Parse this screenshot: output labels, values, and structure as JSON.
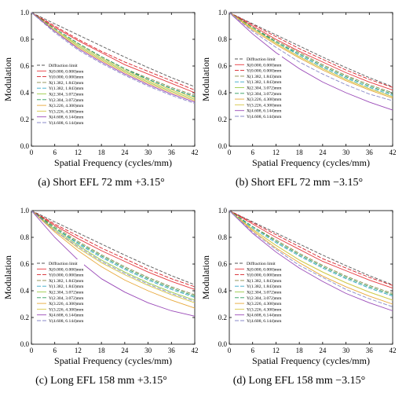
{
  "legend_labels": [
    "Diffraction limit",
    "X(0.000, 0.000)mm",
    "Y(0.000, 0.000)mm",
    "X(1.382, 1.843)mm",
    "Y(1.382, 1.843)mm",
    "X(2.304, 3.072)mm",
    "Y(2.304, 3.072)mm",
    "X(3.226, 4.300)mm",
    "Y(3.226, 4.300)mm",
    "X(4.608, 6.144)mm",
    "Y(4.608, 6.144)mm"
  ],
  "series_colors": [
    "#555555",
    "#e8383d",
    "#d6232a",
    "#8a8a4a",
    "#34a6c8",
    "#9ccc4a",
    "#2a9a5a",
    "#e8a83a",
    "#d8c84a",
    "#9a4ab8",
    "#8a8ac8"
  ],
  "series_dashes": [
    "4,2",
    "",
    "5,2",
    "5,2",
    "5,2",
    "",
    "5,2",
    "",
    "",
    "",
    "5,2"
  ],
  "chart_data": [
    {
      "type": "line",
      "caption": "(a) Short EFL 72 mm +3.15°",
      "xlabel": "Spatial Frequency (cycles/mm)",
      "ylabel": "Modulation",
      "xlim": [
        0,
        42
      ],
      "ylim": [
        0,
        1
      ],
      "xticks": [
        0,
        6,
        12,
        18,
        24,
        30,
        36,
        42
      ],
      "yticks": [
        0.0,
        0.2,
        0.4,
        0.6,
        0.8,
        1.0
      ],
      "legend": "left",
      "series": [
        {
          "name": "Diffraction limit",
          "x": [
            0,
            6,
            12,
            18,
            24,
            30,
            36,
            42
          ],
          "y": [
            1.0,
            0.916,
            0.833,
            0.75,
            0.667,
            0.588,
            0.513,
            0.445
          ]
        },
        {
          "name": "X(0.000, 0.000)mm",
          "x": [
            0,
            6,
            12,
            18,
            24,
            30,
            36,
            42
          ],
          "y": [
            1.0,
            0.89,
            0.79,
            0.7,
            0.61,
            0.54,
            0.47,
            0.4
          ]
        },
        {
          "name": "Y(0.000, 0.000)mm",
          "x": [
            0,
            6,
            12,
            18,
            24,
            30,
            36,
            42
          ],
          "y": [
            1.0,
            0.9,
            0.8,
            0.71,
            0.63,
            0.56,
            0.49,
            0.42
          ]
        },
        {
          "name": "X(1.382, 1.843)mm",
          "x": [
            0,
            6,
            12,
            18,
            24,
            30,
            36,
            42
          ],
          "y": [
            1.0,
            0.88,
            0.77,
            0.67,
            0.58,
            0.51,
            0.44,
            0.38
          ]
        },
        {
          "name": "Y(1.382, 1.843)mm",
          "x": [
            0,
            6,
            12,
            18,
            24,
            30,
            36,
            42
          ],
          "y": [
            1.0,
            0.87,
            0.76,
            0.66,
            0.57,
            0.5,
            0.43,
            0.37
          ]
        },
        {
          "name": "X(2.304, 3.072)mm",
          "x": [
            0,
            6,
            12,
            18,
            24,
            30,
            36,
            42
          ],
          "y": [
            1.0,
            0.87,
            0.75,
            0.65,
            0.56,
            0.48,
            0.41,
            0.35
          ]
        },
        {
          "name": "Y(2.304, 3.072)mm",
          "x": [
            0,
            6,
            12,
            18,
            24,
            30,
            36,
            42
          ],
          "y": [
            1.0,
            0.88,
            0.77,
            0.67,
            0.58,
            0.5,
            0.43,
            0.37
          ]
        },
        {
          "name": "X(3.226, 4.300)mm",
          "x": [
            0,
            6,
            12,
            18,
            24,
            30,
            36,
            42
          ],
          "y": [
            1.0,
            0.86,
            0.74,
            0.64,
            0.55,
            0.47,
            0.4,
            0.34
          ]
        },
        {
          "name": "Y(3.226, 4.300)mm",
          "x": [
            0,
            6,
            12,
            18,
            24,
            30,
            36,
            42
          ],
          "y": [
            1.0,
            0.87,
            0.76,
            0.66,
            0.57,
            0.49,
            0.42,
            0.36
          ]
        },
        {
          "name": "X(4.608, 6.144)mm",
          "x": [
            0,
            6,
            12,
            18,
            24,
            30,
            36,
            42
          ],
          "y": [
            1.0,
            0.86,
            0.73,
            0.63,
            0.54,
            0.46,
            0.39,
            0.33
          ]
        },
        {
          "name": "Y(4.608, 6.144)mm",
          "x": [
            0,
            6,
            12,
            18,
            24,
            30,
            36,
            42
          ],
          "y": [
            1.0,
            0.85,
            0.72,
            0.62,
            0.53,
            0.45,
            0.38,
            0.32
          ]
        }
      ]
    },
    {
      "type": "line",
      "caption": "(b) Short EFL 72 mm −3.15°",
      "xlabel": "Spatial Frequency (cycles/mm)",
      "ylabel": "Modulation",
      "xlim": [
        0,
        42
      ],
      "ylim": [
        0,
        1
      ],
      "xticks": [
        0,
        6,
        12,
        18,
        24,
        30,
        36,
        42
      ],
      "yticks": [
        0.0,
        0.2,
        0.4,
        0.6,
        0.8,
        1.0
      ],
      "legend": "top-left",
      "series": [
        {
          "name": "Diffraction limit",
          "x": [
            0,
            6,
            12,
            18,
            24,
            30,
            36,
            42
          ],
          "y": [
            1.0,
            0.916,
            0.833,
            0.75,
            0.667,
            0.588,
            0.513,
            0.445
          ]
        },
        {
          "name": "X(0.000, 0.000)mm",
          "x": [
            0,
            6,
            12,
            18,
            24,
            30,
            36,
            42
          ],
          "y": [
            1.0,
            0.9,
            0.8,
            0.71,
            0.63,
            0.55,
            0.48,
            0.42
          ]
        },
        {
          "name": "Y(0.000, 0.000)mm",
          "x": [
            0,
            6,
            12,
            18,
            24,
            30,
            36,
            42
          ],
          "y": [
            1.0,
            0.91,
            0.82,
            0.73,
            0.65,
            0.57,
            0.5,
            0.44
          ]
        },
        {
          "name": "X(1.382, 1.843)mm",
          "x": [
            0,
            6,
            12,
            18,
            24,
            30,
            36,
            42
          ],
          "y": [
            1.0,
            0.89,
            0.79,
            0.7,
            0.61,
            0.53,
            0.46,
            0.4
          ]
        },
        {
          "name": "Y(1.382, 1.843)mm",
          "x": [
            0,
            6,
            12,
            18,
            24,
            30,
            36,
            42
          ],
          "y": [
            1.0,
            0.88,
            0.78,
            0.68,
            0.59,
            0.51,
            0.44,
            0.38
          ]
        },
        {
          "name": "X(2.304, 3.072)mm",
          "x": [
            0,
            6,
            12,
            18,
            24,
            30,
            36,
            42
          ],
          "y": [
            1.0,
            0.88,
            0.77,
            0.67,
            0.58,
            0.5,
            0.43,
            0.37
          ]
        },
        {
          "name": "Y(2.304, 3.072)mm",
          "x": [
            0,
            6,
            12,
            18,
            24,
            30,
            36,
            42
          ],
          "y": [
            1.0,
            0.89,
            0.78,
            0.69,
            0.6,
            0.52,
            0.45,
            0.39
          ]
        },
        {
          "name": "X(3.226, 4.300)mm",
          "x": [
            0,
            6,
            12,
            18,
            24,
            30,
            36,
            42
          ],
          "y": [
            1.0,
            0.87,
            0.76,
            0.66,
            0.57,
            0.49,
            0.42,
            0.36
          ]
        },
        {
          "name": "Y(3.226, 4.300)mm",
          "x": [
            0,
            6,
            12,
            18,
            24,
            30,
            36,
            42
          ],
          "y": [
            1.0,
            0.88,
            0.77,
            0.67,
            0.58,
            0.5,
            0.43,
            0.37
          ]
        },
        {
          "name": "X(4.608, 6.144)mm",
          "x": [
            0,
            6,
            12,
            18,
            24,
            30,
            36,
            42
          ],
          "y": [
            1.0,
            0.84,
            0.7,
            0.58,
            0.48,
            0.4,
            0.33,
            0.27
          ]
        },
        {
          "name": "Y(4.608, 6.144)mm",
          "x": [
            0,
            6,
            12,
            18,
            24,
            30,
            36,
            42
          ],
          "y": [
            1.0,
            0.86,
            0.74,
            0.63,
            0.54,
            0.46,
            0.39,
            0.34
          ]
        }
      ]
    },
    {
      "type": "line",
      "caption": "(c) Long EFL 158 mm +3.15°",
      "xlabel": "Spatial Frequency (cycles/mm)",
      "ylabel": "Modulation",
      "xlim": [
        0,
        42
      ],
      "ylim": [
        0,
        1
      ],
      "xticks": [
        0,
        6,
        12,
        18,
        24,
        30,
        36,
        42
      ],
      "yticks": [
        0.0,
        0.2,
        0.4,
        0.6,
        0.8,
        1.0
      ],
      "legend": "left",
      "series": [
        {
          "name": "Diffraction limit",
          "x": [
            0,
            6,
            12,
            18,
            24,
            30,
            36,
            42
          ],
          "y": [
            1.0,
            0.916,
            0.833,
            0.75,
            0.667,
            0.588,
            0.513,
            0.445
          ]
        },
        {
          "name": "X(0.000, 0.000)mm",
          "x": [
            0,
            6,
            12,
            18,
            24,
            30,
            36,
            42
          ],
          "y": [
            1.0,
            0.89,
            0.79,
            0.7,
            0.62,
            0.54,
            0.47,
            0.41
          ]
        },
        {
          "name": "Y(0.000, 0.000)mm",
          "x": [
            0,
            6,
            12,
            18,
            24,
            30,
            36,
            42
          ],
          "y": [
            1.0,
            0.9,
            0.81,
            0.72,
            0.64,
            0.56,
            0.49,
            0.43
          ]
        },
        {
          "name": "X(1.382, 1.843)mm",
          "x": [
            0,
            6,
            12,
            18,
            24,
            30,
            36,
            42
          ],
          "y": [
            1.0,
            0.88,
            0.77,
            0.67,
            0.58,
            0.5,
            0.43,
            0.37
          ]
        },
        {
          "name": "Y(1.382, 1.843)mm",
          "x": [
            0,
            6,
            12,
            18,
            24,
            30,
            36,
            42
          ],
          "y": [
            1.0,
            0.87,
            0.75,
            0.65,
            0.56,
            0.48,
            0.41,
            0.35
          ]
        },
        {
          "name": "X(2.304, 3.072)mm",
          "x": [
            0,
            6,
            12,
            18,
            24,
            30,
            36,
            42
          ],
          "y": [
            1.0,
            0.86,
            0.74,
            0.63,
            0.54,
            0.46,
            0.39,
            0.33
          ]
        },
        {
          "name": "Y(2.304, 3.072)mm",
          "x": [
            0,
            6,
            12,
            18,
            24,
            30,
            36,
            42
          ],
          "y": [
            1.0,
            0.87,
            0.76,
            0.66,
            0.57,
            0.49,
            0.42,
            0.36
          ]
        },
        {
          "name": "X(3.226, 4.300)mm",
          "x": [
            0,
            6,
            12,
            18,
            24,
            30,
            36,
            42
          ],
          "y": [
            1.0,
            0.84,
            0.7,
            0.58,
            0.48,
            0.4,
            0.33,
            0.27
          ]
        },
        {
          "name": "Y(3.226, 4.300)mm",
          "x": [
            0,
            6,
            12,
            18,
            24,
            30,
            36,
            42
          ],
          "y": [
            1.0,
            0.85,
            0.72,
            0.61,
            0.52,
            0.44,
            0.37,
            0.31
          ]
        },
        {
          "name": "X(4.608, 6.144)mm",
          "x": [
            0,
            6,
            12,
            18,
            24,
            30,
            36,
            42
          ],
          "y": [
            1.0,
            0.8,
            0.63,
            0.49,
            0.39,
            0.31,
            0.25,
            0.21
          ]
        },
        {
          "name": "Y(4.608, 6.144)mm",
          "x": [
            0,
            6,
            12,
            18,
            24,
            30,
            36,
            42
          ],
          "y": [
            1.0,
            0.85,
            0.73,
            0.62,
            0.53,
            0.45,
            0.38,
            0.32
          ]
        }
      ]
    },
    {
      "type": "line",
      "caption": "(d) Long EFL 158 mm −3.15°",
      "xlabel": "Spatial Frequency (cycles/mm)",
      "ylabel": "Modulation",
      "xlim": [
        0,
        42
      ],
      "ylim": [
        0,
        1
      ],
      "xticks": [
        0,
        6,
        12,
        18,
        24,
        30,
        36,
        42
      ],
      "yticks": [
        0.0,
        0.2,
        0.4,
        0.6,
        0.8,
        1.0
      ],
      "legend": "left",
      "series": [
        {
          "name": "Diffraction limit",
          "x": [
            0,
            6,
            12,
            18,
            24,
            30,
            36,
            42
          ],
          "y": [
            1.0,
            0.916,
            0.833,
            0.75,
            0.667,
            0.588,
            0.513,
            0.445
          ]
        },
        {
          "name": "X(0.000, 0.000)mm",
          "x": [
            0,
            6,
            12,
            18,
            24,
            30,
            36,
            42
          ],
          "y": [
            1.0,
            0.9,
            0.8,
            0.71,
            0.62,
            0.55,
            0.48,
            0.42
          ]
        },
        {
          "name": "Y(0.000, 0.000)mm",
          "x": [
            0,
            6,
            12,
            18,
            24,
            30,
            36,
            42
          ],
          "y": [
            1.0,
            0.91,
            0.82,
            0.73,
            0.64,
            0.57,
            0.5,
            0.44
          ]
        },
        {
          "name": "X(1.382, 1.843)mm",
          "x": [
            0,
            6,
            12,
            18,
            24,
            30,
            36,
            42
          ],
          "y": [
            1.0,
            0.88,
            0.78,
            0.68,
            0.59,
            0.51,
            0.44,
            0.38
          ]
        },
        {
          "name": "Y(1.382, 1.843)mm",
          "x": [
            0,
            6,
            12,
            18,
            24,
            30,
            36,
            42
          ],
          "y": [
            1.0,
            0.87,
            0.76,
            0.66,
            0.57,
            0.49,
            0.42,
            0.36
          ]
        },
        {
          "name": "X(2.304, 3.072)mm",
          "x": [
            0,
            6,
            12,
            18,
            24,
            30,
            36,
            42
          ],
          "y": [
            1.0,
            0.86,
            0.74,
            0.63,
            0.54,
            0.46,
            0.39,
            0.33
          ]
        },
        {
          "name": "Y(2.304, 3.072)mm",
          "x": [
            0,
            6,
            12,
            18,
            24,
            30,
            36,
            42
          ],
          "y": [
            1.0,
            0.88,
            0.77,
            0.67,
            0.58,
            0.5,
            0.43,
            0.37
          ]
        },
        {
          "name": "X(3.226, 4.300)mm",
          "x": [
            0,
            6,
            12,
            18,
            24,
            30,
            36,
            42
          ],
          "y": [
            1.0,
            0.85,
            0.72,
            0.61,
            0.51,
            0.43,
            0.36,
            0.3
          ]
        },
        {
          "name": "Y(3.226, 4.300)mm",
          "x": [
            0,
            6,
            12,
            18,
            24,
            30,
            36,
            42
          ],
          "y": [
            1.0,
            0.86,
            0.74,
            0.63,
            0.54,
            0.46,
            0.39,
            0.33
          ]
        },
        {
          "name": "X(4.608, 6.144)mm",
          "x": [
            0,
            6,
            12,
            18,
            24,
            30,
            36,
            42
          ],
          "y": [
            1.0,
            0.83,
            0.69,
            0.57,
            0.47,
            0.38,
            0.31,
            0.25
          ]
        },
        {
          "name": "Y(4.608, 6.144)mm",
          "x": [
            0,
            6,
            12,
            18,
            24,
            30,
            36,
            42
          ],
          "y": [
            1.0,
            0.84,
            0.71,
            0.59,
            0.5,
            0.41,
            0.34,
            0.28
          ]
        }
      ]
    }
  ]
}
